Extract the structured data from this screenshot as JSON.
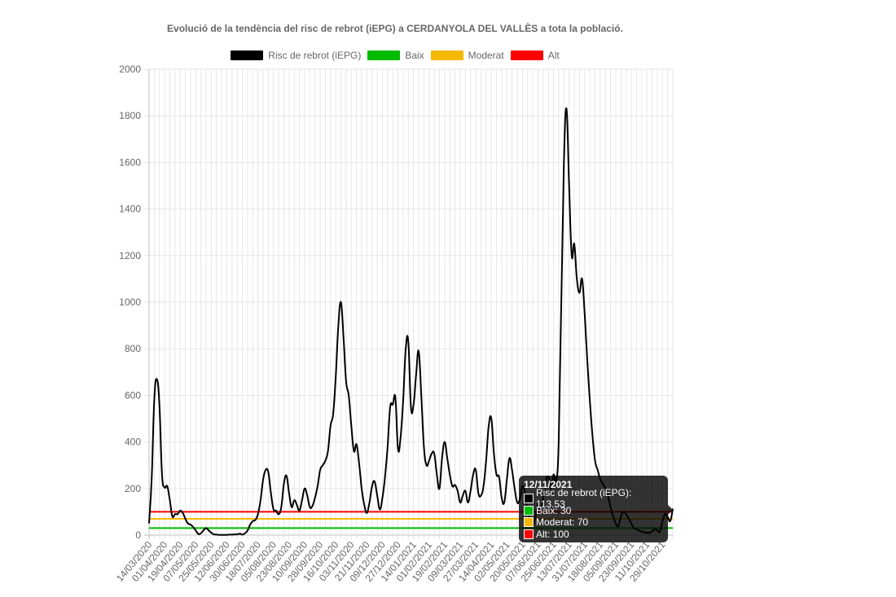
{
  "chart_data": {
    "type": "line",
    "title": "Evolució de la tendència del risc de rebrot (iEPG) a CERDANYOLA DEL VALLÈS a tota la població.",
    "ylim": [
      0,
      2000
    ],
    "yticks": [
      0,
      200,
      400,
      600,
      800,
      1000,
      1200,
      1400,
      1600,
      1800,
      2000
    ],
    "x_start": "14/03/2020",
    "x_end": "12/11/2021",
    "xtick_labels": [
      "14/03/2020",
      "01/04/2020",
      "19/04/2020",
      "07/05/2020",
      "25/05/2020",
      "12/06/2020",
      "30/06/2020",
      "18/07/2020",
      "05/08/2020",
      "23/08/2020",
      "10/09/2020",
      "28/09/2020",
      "16/10/2020",
      "03/11/2020",
      "21/11/2020",
      "09/12/2020",
      "27/12/2020",
      "14/01/2021",
      "01/02/2021",
      "19/02/2021",
      "09/03/2021",
      "27/03/2021",
      "14/04/2021",
      "02/05/2021",
      "20/05/2021",
      "07/06/2021",
      "25/06/2021",
      "13/07/2021",
      "31/07/2021",
      "18/08/2021",
      "05/09/2021",
      "23/09/2021",
      "11/10/2021",
      "29/10/2021"
    ],
    "grid": true,
    "legend_position": "top",
    "series": [
      {
        "name": "Risc de rebrot (iEPG)",
        "color": "#000000",
        "points": [
          [
            0,
            50
          ],
          [
            3,
            240
          ],
          [
            6,
            580
          ],
          [
            9,
            670
          ],
          [
            12,
            560
          ],
          [
            15,
            260
          ],
          [
            18,
            205
          ],
          [
            21,
            210
          ],
          [
            24,
            150
          ],
          [
            27,
            80
          ],
          [
            30,
            90
          ],
          [
            33,
            90
          ],
          [
            36,
            105
          ],
          [
            39,
            95
          ],
          [
            42,
            70
          ],
          [
            45,
            50
          ],
          [
            48,
            45
          ],
          [
            51,
            35
          ],
          [
            54,
            20
          ],
          [
            57,
            5
          ],
          [
            60,
            8
          ],
          [
            63,
            20
          ],
          [
            66,
            30
          ],
          [
            69,
            20
          ],
          [
            72,
            10
          ],
          [
            75,
            3
          ],
          [
            78,
            2
          ],
          [
            81,
            1
          ],
          [
            84,
            1
          ],
          [
            87,
            1
          ],
          [
            90,
            1
          ],
          [
            93,
            2
          ],
          [
            96,
            2
          ],
          [
            99,
            3
          ],
          [
            102,
            3
          ],
          [
            105,
            6
          ],
          [
            108,
            2
          ],
          [
            111,
            8
          ],
          [
            114,
            20
          ],
          [
            117,
            45
          ],
          [
            120,
            60
          ],
          [
            123,
            65
          ],
          [
            126,
            90
          ],
          [
            129,
            150
          ],
          [
            132,
            240
          ],
          [
            135,
            280
          ],
          [
            138,
            270
          ],
          [
            141,
            180
          ],
          [
            144,
            110
          ],
          [
            147,
            105
          ],
          [
            150,
            90
          ],
          [
            153,
            120
          ],
          [
            156,
            220
          ],
          [
            159,
            255
          ],
          [
            162,
            180
          ],
          [
            165,
            120
          ],
          [
            168,
            150
          ],
          [
            171,
            130
          ],
          [
            174,
            105
          ],
          [
            177,
            150
          ],
          [
            180,
            200
          ],
          [
            183,
            170
          ],
          [
            186,
            120
          ],
          [
            189,
            125
          ],
          [
            192,
            160
          ],
          [
            195,
            210
          ],
          [
            198,
            280
          ],
          [
            201,
            300
          ],
          [
            204,
            320
          ],
          [
            207,
            360
          ],
          [
            210,
            470
          ],
          [
            213,
            520
          ],
          [
            216,
            680
          ],
          [
            219,
            900
          ],
          [
            222,
            1000
          ],
          [
            225,
            850
          ],
          [
            228,
            660
          ],
          [
            231,
            600
          ],
          [
            234,
            470
          ],
          [
            237,
            360
          ],
          [
            240,
            390
          ],
          [
            243,
            310
          ],
          [
            246,
            200
          ],
          [
            249,
            130
          ],
          [
            252,
            95
          ],
          [
            255,
            140
          ],
          [
            258,
            210
          ],
          [
            261,
            230
          ],
          [
            264,
            170
          ],
          [
            267,
            110
          ],
          [
            270,
            160
          ],
          [
            273,
            250
          ],
          [
            276,
            380
          ],
          [
            279,
            550
          ],
          [
            282,
            560
          ],
          [
            285,
            590
          ],
          [
            288,
            370
          ],
          [
            291,
            420
          ],
          [
            294,
            580
          ],
          [
            297,
            800
          ],
          [
            300,
            830
          ],
          [
            303,
            550
          ],
          [
            306,
            560
          ],
          [
            309,
            690
          ],
          [
            312,
            790
          ],
          [
            315,
            600
          ],
          [
            318,
            380
          ],
          [
            321,
            300
          ],
          [
            324,
            320
          ],
          [
            327,
            350
          ],
          [
            330,
            350
          ],
          [
            333,
            260
          ],
          [
            336,
            200
          ],
          [
            339,
            330
          ],
          [
            342,
            400
          ],
          [
            345,
            330
          ],
          [
            348,
            260
          ],
          [
            351,
            210
          ],
          [
            354,
            215
          ],
          [
            357,
            190
          ],
          [
            360,
            140
          ],
          [
            363,
            170
          ],
          [
            366,
            190
          ],
          [
            369,
            140
          ],
          [
            372,
            190
          ],
          [
            375,
            260
          ],
          [
            378,
            280
          ],
          [
            381,
            180
          ],
          [
            384,
            170
          ],
          [
            387,
            210
          ],
          [
            390,
            320
          ],
          [
            393,
            470
          ],
          [
            396,
            500
          ],
          [
            399,
            350
          ],
          [
            402,
            260
          ],
          [
            405,
            250
          ],
          [
            408,
            160
          ],
          [
            411,
            140
          ],
          [
            414,
            240
          ],
          [
            417,
            330
          ],
          [
            420,
            280
          ],
          [
            423,
            200
          ],
          [
            426,
            140
          ],
          [
            429,
            155
          ],
          [
            432,
            210
          ],
          [
            435,
            180
          ],
          [
            438,
            100
          ],
          [
            441,
            70
          ],
          [
            444,
            40
          ],
          [
            447,
            80
          ],
          [
            450,
            130
          ],
          [
            453,
            110
          ],
          [
            456,
            160
          ],
          [
            459,
            230
          ],
          [
            462,
            250
          ],
          [
            465,
            200
          ],
          [
            468,
            260
          ],
          [
            471,
            230
          ],
          [
            474,
            400
          ],
          [
            477,
            1000
          ],
          [
            480,
            1600
          ],
          [
            483,
            1830
          ],
          [
            486,
            1500
          ],
          [
            489,
            1200
          ],
          [
            492,
            1250
          ],
          [
            495,
            1100
          ],
          [
            498,
            1040
          ],
          [
            501,
            1100
          ],
          [
            504,
            950
          ],
          [
            507,
            750
          ],
          [
            510,
            580
          ],
          [
            513,
            430
          ],
          [
            516,
            320
          ],
          [
            519,
            280
          ],
          [
            522,
            240
          ],
          [
            525,
            220
          ],
          [
            528,
            200
          ],
          [
            531,
            170
          ],
          [
            534,
            120
          ],
          [
            537,
            80
          ],
          [
            540,
            50
          ],
          [
            543,
            40
          ],
          [
            546,
            80
          ],
          [
            549,
            100
          ],
          [
            552,
            90
          ],
          [
            555,
            70
          ],
          [
            558,
            50
          ],
          [
            561,
            30
          ],
          [
            564,
            25
          ],
          [
            567,
            20
          ],
          [
            570,
            15
          ],
          [
            573,
            12
          ],
          [
            576,
            10
          ],
          [
            579,
            10
          ],
          [
            582,
            15
          ],
          [
            585,
            25
          ],
          [
            588,
            20
          ],
          [
            591,
            15
          ],
          [
            594,
            60
          ],
          [
            597,
            90
          ],
          [
            600,
            80
          ],
          [
            603,
            60
          ],
          [
            606,
            113.53
          ]
        ]
      },
      {
        "name": "Baix",
        "color": "#00bb00",
        "constant": 30
      },
      {
        "name": "Moderat",
        "color": "#f5b800",
        "constant": 70
      },
      {
        "name": "Alt",
        "color": "#ff0000",
        "constant": 100
      }
    ]
  },
  "tooltip": {
    "title": "12/11/2021",
    "rows": [
      {
        "label": "Risc de rebrot (iEPG): 113.53",
        "color": "#000000"
      },
      {
        "label": "Baix: 30",
        "color": "#00bb00"
      },
      {
        "label": "Moderat: 70",
        "color": "#f5b800"
      },
      {
        "label": "Alt: 100",
        "color": "#ff0000"
      }
    ]
  }
}
